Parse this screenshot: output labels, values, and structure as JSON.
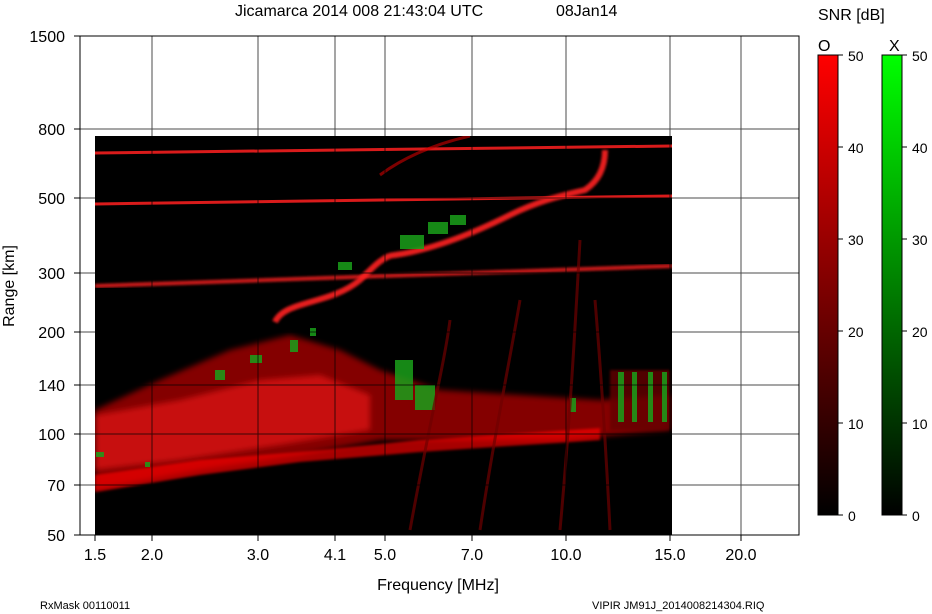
{
  "header": {
    "title": "Jicamarca 2014 008 21:43:04 UTC",
    "date": "08Jan14"
  },
  "colorbar": {
    "title": "SNR [dB]",
    "o_label": "O",
    "x_label": "X",
    "ticks": [
      "50",
      "40",
      "30",
      "20",
      "10",
      "0"
    ],
    "o_color_max": "#ff0000",
    "x_color_max": "#00ff00"
  },
  "footer": {
    "left": "RxMask 00110011",
    "right": "VIPIR  JM91J_2014008214304.RIQ"
  },
  "chart_data": {
    "type": "heatmap",
    "title": "Jicamarca 2014 008 21:43:04 UTC",
    "xlabel": "Frequency [MHz]",
    "ylabel": "Range [km]",
    "x_ticks": [
      "1.5",
      "2.0",
      "3.0",
      "4.1",
      "5.0",
      "7.0",
      "10.0",
      "15.0",
      "20.0"
    ],
    "y_ticks": [
      "1500",
      "800",
      "500",
      "300",
      "200",
      "140",
      "100",
      "70",
      "50"
    ],
    "xlim": [
      1.5,
      25
    ],
    "ylim": [
      50,
      1500
    ],
    "data_frequency_range_mhz": [
      1.6,
      15.0
    ],
    "data_range_km": [
      50,
      780
    ],
    "grid": true,
    "traces": [
      {
        "name": "O-mode",
        "x": [
          1.6,
          2.5,
          3.5,
          4.5,
          5.0,
          6.0,
          7.0,
          8.0,
          9.0,
          10.0,
          11.0
        ],
        "y": [
          265,
          275,
          285,
          300,
          340,
          370,
          390,
          420,
          450,
          490,
          560
        ]
      }
    ]
  }
}
